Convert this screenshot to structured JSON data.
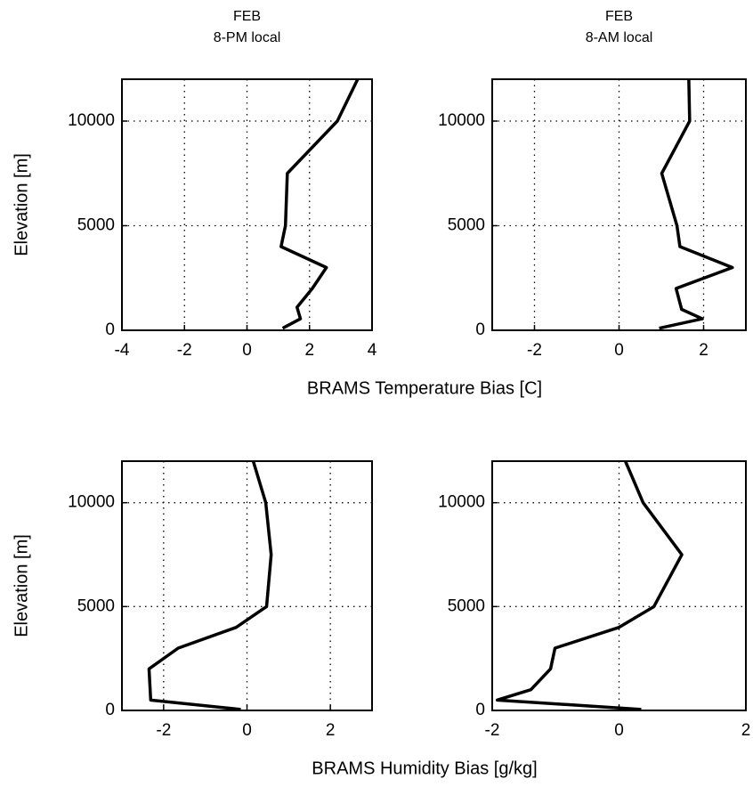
{
  "chart_data": [
    {
      "type": "line",
      "title": "FEB",
      "subtitle": "8-PM local",
      "ylabel": "Elevation [m]",
      "xlabel": "BRAMS Temperature Bias [C]",
      "x": [
        1.14,
        1.71,
        1.6,
        2.09,
        2.54,
        1.09,
        1.23,
        1.29,
        2.89,
        3.54
      ],
      "values": [
        100,
        550,
        1100,
        2000,
        3000,
        4000,
        5000,
        7500,
        10000,
        12000
      ],
      "color": "#000000",
      "xlim": [
        -4,
        4
      ],
      "xticks": [
        -4,
        -2,
        0,
        2,
        4
      ],
      "ylim": [
        0,
        12000
      ],
      "yticks": [
        0,
        5000,
        10000
      ],
      "grid": true
    },
    {
      "type": "line",
      "title": "FEB",
      "subtitle": "8-AM local",
      "x": [
        0.95,
        1.97,
        1.48,
        1.35,
        2.68,
        1.44,
        1.37,
        1.01,
        1.67,
        1.65
      ],
      "values": [
        100,
        550,
        1000,
        2000,
        3000,
        4000,
        5000,
        7500,
        10000,
        12000
      ],
      "color": "#000000",
      "xlim": [
        -3,
        3
      ],
      "xticks": [
        -2,
        0,
        2
      ],
      "ylim": [
        0,
        12000
      ],
      "yticks": [
        0,
        5000,
        10000
      ],
      "grid": true
    },
    {
      "type": "line",
      "ylabel": "Elevation [m]",
      "xlabel": "BRAMS Humidity Bias [g/kg]",
      "x": [
        -0.15,
        -2.31,
        -2.35,
        -1.65,
        -0.26,
        0.47,
        0.58,
        0.45,
        0.15
      ],
      "values": [
        50,
        500,
        2000,
        3000,
        4000,
        5000,
        7500,
        10000,
        12000
      ],
      "color": "#000000",
      "xlim": [
        -3,
        3
      ],
      "xticks": [
        -2,
        0,
        2
      ],
      "ylim": [
        0,
        12000
      ],
      "yticks": [
        0,
        5000,
        10000
      ],
      "grid": true
    },
    {
      "type": "line",
      "x": [
        0.35,
        -1.92,
        -1.39,
        -1.08,
        -1.01,
        0,
        0.55,
        0.99,
        0.38,
        0.1
      ],
      "values": [
        50,
        500,
        1000,
        2000,
        3000,
        4000,
        5000,
        7500,
        10000,
        12000
      ],
      "color": "#000000",
      "xlim": [
        -2,
        2
      ],
      "xticks": [
        -2,
        0,
        2
      ],
      "ylim": [
        0,
        12000
      ],
      "yticks": [
        0,
        5000,
        10000
      ],
      "grid": true
    }
  ]
}
